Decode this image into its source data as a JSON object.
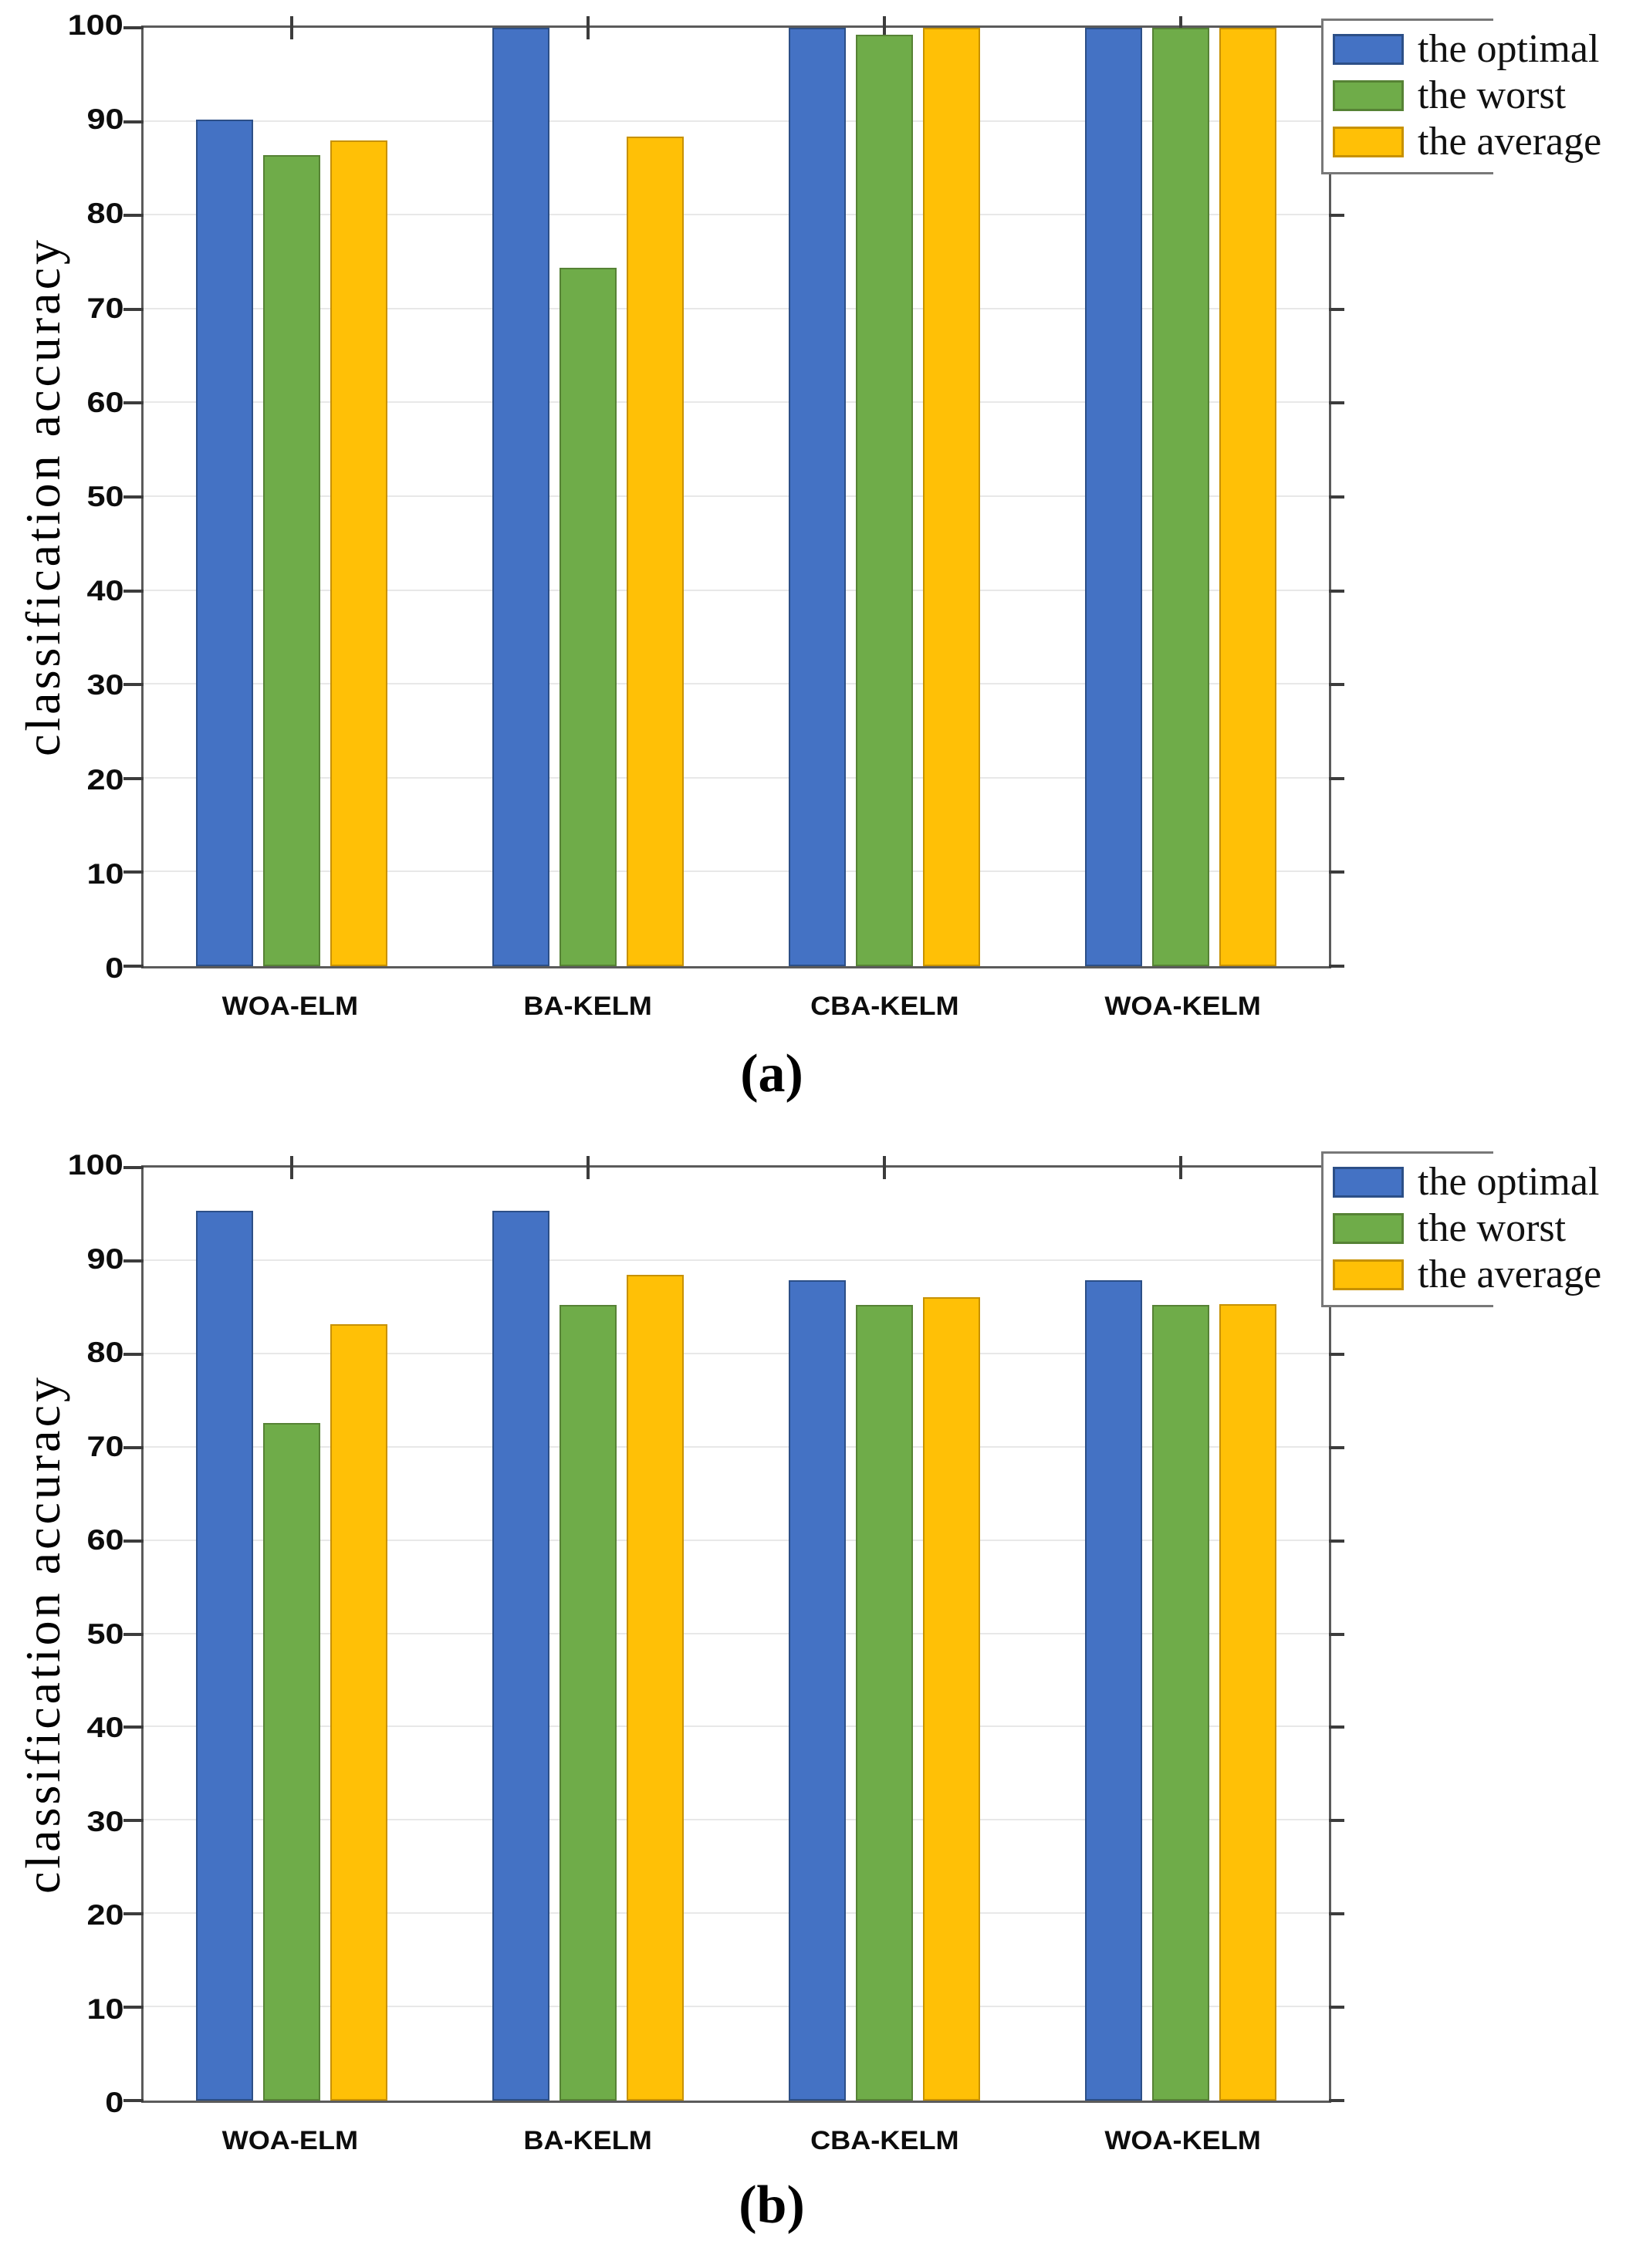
{
  "figure": {
    "panel_a_label": "(a)",
    "panel_b_label": "(b)"
  },
  "colors": {
    "optimal": {
      "fill": "#4472C4",
      "border": "#2C4F87"
    },
    "worst": {
      "fill": "#6FAC49",
      "border": "#568235"
    },
    "average": {
      "fill": "#FFC006",
      "border": "#C79100"
    },
    "axis": "#5b5b5b",
    "tick": "#3c3c3c",
    "grid": "#e8e8e8"
  },
  "chart_data": [
    {
      "type": "bar",
      "panel": "(a)",
      "title": "",
      "xlabel": "",
      "ylabel": "classification accuracy",
      "ylim": [
        0,
        100
      ],
      "yticks": [
        0,
        10,
        20,
        30,
        40,
        50,
        60,
        70,
        80,
        90,
        100
      ],
      "grid": true,
      "legend_position": "top-right",
      "categories": [
        "WOA-ELM",
        "BA-KELM",
        "CBA-KELM",
        "WOA-KELM"
      ],
      "series": [
        {
          "name": "the optimal",
          "color_key": "optimal",
          "values": [
            90.2,
            100,
            100,
            100
          ]
        },
        {
          "name": "the worst",
          "color_key": "worst",
          "values": [
            86.4,
            74.4,
            99.3,
            100
          ]
        },
        {
          "name": "the average",
          "color_key": "average",
          "values": [
            88.0,
            88.4,
            100,
            100
          ]
        }
      ]
    },
    {
      "type": "bar",
      "panel": "(b)",
      "title": "",
      "xlabel": "",
      "ylabel": "classification accuracy",
      "ylim": [
        0,
        100
      ],
      "yticks": [
        0,
        10,
        20,
        30,
        40,
        50,
        60,
        70,
        80,
        90,
        100
      ],
      "grid": true,
      "legend_position": "top-right",
      "categories": [
        "WOA-ELM",
        "BA-KELM",
        "CBA-KELM",
        "WOA-KELM"
      ],
      "series": [
        {
          "name": "the optimal",
          "color_key": "optimal",
          "values": [
            95.4,
            95.4,
            87.9,
            87.9
          ]
        },
        {
          "name": "the worst",
          "color_key": "worst",
          "values": [
            72.6,
            85.3,
            85.3,
            85.3
          ]
        },
        {
          "name": "the average",
          "color_key": "average",
          "values": [
            83.2,
            88.5,
            86.1,
            85.4
          ]
        }
      ]
    }
  ]
}
